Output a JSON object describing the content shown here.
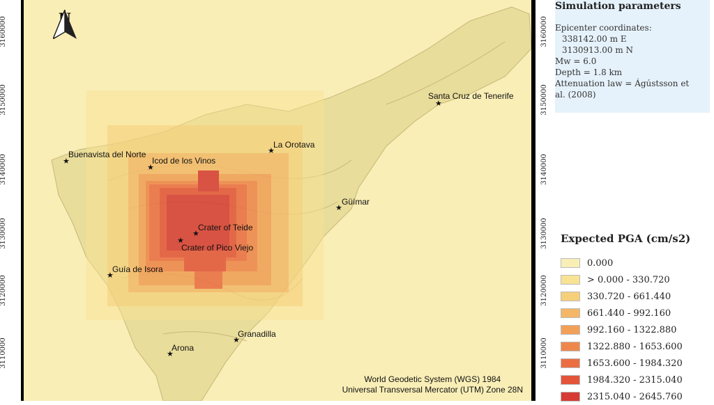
{
  "map": {
    "north_label": "N",
    "icon": "north-arrow-icon",
    "crs_lines": [
      "World Geodetic System (WGS) 1984",
      "Universal Transversal Mercator (UTM) Zone 28N"
    ],
    "y_ticks": [
      "3160000",
      "3150000",
      "3140000",
      "3130000",
      "3120000",
      "3110000"
    ],
    "places": [
      {
        "name": "Santa Cruz de Tenerife"
      },
      {
        "name": "La Orotava"
      },
      {
        "name": "Buenavista del Norte"
      },
      {
        "name": "Icod de los Vinos"
      },
      {
        "name": "Güímar"
      },
      {
        "name": "Crater of Teide"
      },
      {
        "name": "Crater of Pico Viejo"
      },
      {
        "name": "Guía de Isora"
      },
      {
        "name": "Granadilla"
      },
      {
        "name": "Arona"
      }
    ],
    "colors": {
      "background": "#f9eeb6",
      "land": "#e8dc99"
    }
  },
  "simulation": {
    "title": "Simulation parameters",
    "epicenter_label": "Epicenter coordinates:",
    "easting": "338142.00 m E",
    "northing": "3130913.00 m N",
    "mw": "Mw = 6.0",
    "depth": "Depth = 1.8 km",
    "attenuation_1": "Attenuation law = Ágústsson et",
    "attenuation_2": "al. (2008)"
  },
  "legend": {
    "title": "Expected PGA (cm/s2)",
    "items": [
      {
        "label": "0.000",
        "color": "#f9eeb6"
      },
      {
        "label": "> 0.000 - 330.720",
        "color": "#f8e294"
      },
      {
        "label": "330.720 - 661.440",
        "color": "#f6cf7a"
      },
      {
        "label": "661.440 - 992.160",
        "color": "#f4b767"
      },
      {
        "label": "992.160 - 1322.880",
        "color": "#f2a058"
      },
      {
        "label": "1322.880 - 1653.600",
        "color": "#ef874c"
      },
      {
        "label": "1653.600 - 1984.320",
        "color": "#eb6e43"
      },
      {
        "label": "1984.320 - 2315.040",
        "color": "#e3543a"
      },
      {
        "label": "2315.040 - 2645.760",
        "color": "#d63b34"
      }
    ]
  }
}
